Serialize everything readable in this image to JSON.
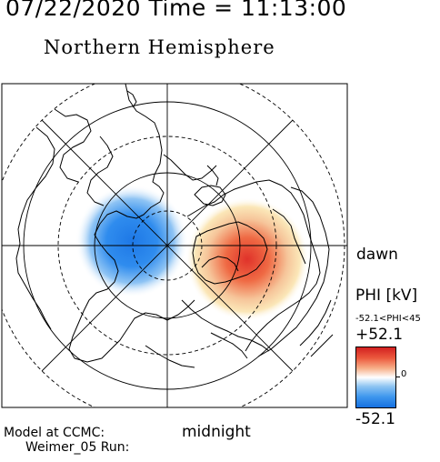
{
  "header": {
    "datetime": "07/22/2020 Time = 11:13:00",
    "title": "Northern Hemisphere"
  },
  "labels": {
    "dawn": "dawn",
    "midnight": "midnight",
    "model_line1": "Model at CCMC:",
    "model_line2": "Weimer_05 Run:"
  },
  "colorbar": {
    "quantity": "PHI [kV]",
    "range_text": "-52.1<PHI<45",
    "max_label": "+52.1",
    "zero_label": "0",
    "min_label": "-52.1",
    "max_color": "#d32020",
    "mid_color": "#ffffff",
    "min_color": "#1570e0"
  },
  "map": {
    "projection": "polar",
    "pole": "north",
    "potential_cells": [
      {
        "sign": "negative",
        "color": "#1e78e6",
        "location": "dusk side"
      },
      {
        "sign": "positive",
        "color": "#e0322a",
        "location": "dawn side"
      }
    ]
  }
}
